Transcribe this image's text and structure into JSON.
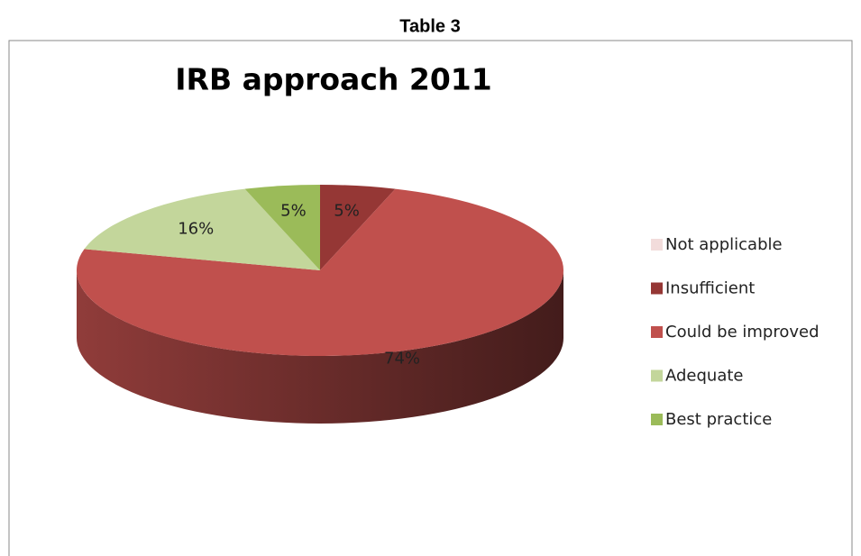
{
  "page_title": "Table 3",
  "chart_data": {
    "type": "pie3d",
    "title": "IRB approach 2011",
    "categories": [
      "Not applicable",
      "Insufficient",
      "Could be improved",
      "Adequate",
      "Best practice"
    ],
    "values": [
      0,
      5,
      74,
      16,
      5
    ],
    "value_labels": [
      null,
      "5%",
      "74%",
      "16%",
      "5%"
    ],
    "colors": [
      "#f2dcdb",
      "#953735",
      "#c0504d",
      "#c3d69b",
      "#9bbb59"
    ],
    "legend": "right"
  }
}
